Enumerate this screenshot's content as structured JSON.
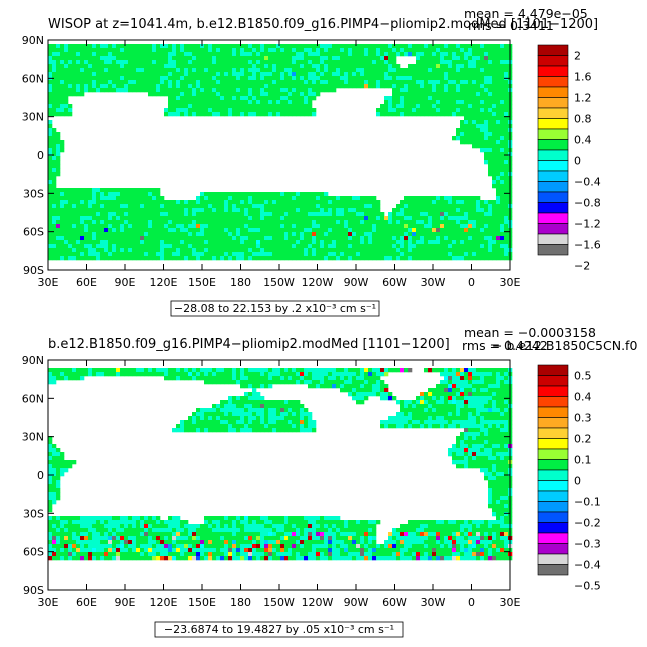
{
  "colors": {
    "ocean_green": "#00ee44",
    "cyan": "#00ffee",
    "land": "#ffffff",
    "palette": [
      "#707070",
      "#d8d8d8",
      "#aa00cc",
      "#ff00ff",
      "#0000ff",
      "#0055ff",
      "#0099ff",
      "#00ccff",
      "#00ffff",
      "#00ffcc",
      "#00ee44",
      "#99ff33",
      "#ffff00",
      "#ffd033",
      "#ffaa22",
      "#ff8800",
      "#ff4400",
      "#ff0000",
      "#cc0000",
      "#aa0000"
    ]
  },
  "chart_data": [
    {
      "type": "heatmap",
      "title": "WISOP at z=1041.4m, b.e12.B1850.f09_g16.PIMP4−pliomip2.modMed [1101−1200]",
      "stat_mean": "mean = 4.479e−05",
      "stat_rms": "rms = 0.3411",
      "range_info": "−28.08 to 22.153 by .2 x10⁻³ cm s⁻¹",
      "x_ticks": [
        "30E",
        "60E",
        "90E",
        "120E",
        "150E",
        "180",
        "150W",
        "120W",
        "90W",
        "60W",
        "30W",
        "0",
        "30E"
      ],
      "y_ticks": [
        "90N",
        "60N",
        "30N",
        "0",
        "30S",
        "60S",
        "90S"
      ],
      "colorbar_labels": [
        "2",
        "1.6",
        "1.2",
        "0.8",
        "0.4",
        "0",
        "−0.4",
        "−0.8",
        "−1.2",
        "−1.6",
        "−2"
      ],
      "colorbar_min": -2.0,
      "colorbar_max": 2.0
    },
    {
      "type": "heatmap",
      "title": "b.e12.B1850.f09_g16.PIMP4−pliomip2.modMed [1101−1200]",
      "title_overlap": "− b.e12.B1850C5CN.f0",
      "stat_mean": "mean = −0.0003158",
      "stat_rms": "rms = 0.4242",
      "range_info": "−23.6874 to 19.4827 by .05 x10⁻³ cm s⁻¹",
      "x_ticks": [
        "30E",
        "60E",
        "90E",
        "120E",
        "150E",
        "180",
        "150W",
        "120W",
        "90W",
        "60W",
        "30W",
        "0",
        "30E"
      ],
      "y_ticks": [
        "90N",
        "60N",
        "30N",
        "0",
        "30S",
        "60S",
        "90S"
      ],
      "colorbar_labels": [
        "0.5",
        "0.4",
        "0.3",
        "0.2",
        "0.1",
        "0",
        "−0.1",
        "−0.2",
        "−0.3",
        "−0.4",
        "−0.5"
      ],
      "colorbar_min": -0.5,
      "colorbar_max": 0.5
    }
  ]
}
